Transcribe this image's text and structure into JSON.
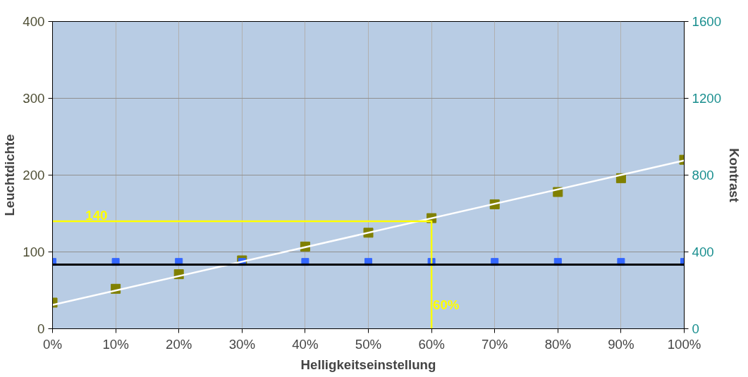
{
  "chart_data": {
    "type": "scatter",
    "xlabel": "Helligkeitseinstellung",
    "ylabel": "Leuchtdichte",
    "y2label": "Kontrast",
    "x": [
      0,
      10,
      20,
      30,
      40,
      50,
      60,
      70,
      80,
      90,
      100
    ],
    "series": [
      {
        "color": "#808000",
        "marker": "square",
        "values": [
          34,
          52,
          71,
          89,
          107,
          125,
          144,
          162,
          178,
          196,
          220
        ]
      },
      {
        "color": "#3366ff",
        "marker": "square",
        "axis": "y2",
        "values": [
          348,
          348,
          348,
          348,
          348,
          348,
          348,
          348,
          348,
          348,
          348
        ]
      },
      {
        "type": "line",
        "color": "#ffffff",
        "x": [
          0,
          100
        ],
        "values": [
          31,
          219
        ]
      },
      {
        "type": "line",
        "color": "#ffff00",
        "x": [
          0,
          60,
          60
        ],
        "values": [
          140,
          140,
          0
        ]
      }
    ],
    "ref_lines": [
      {
        "axis": "y2",
        "value": 334,
        "color": "#000000"
      }
    ],
    "annotations": [
      {
        "text": "140",
        "x": 5,
        "y": 140
      },
      {
        "text": "60%",
        "x": 60,
        "y": 20
      }
    ],
    "xlim": [
      0,
      100
    ],
    "ylim": [
      0,
      400
    ],
    "y2lim": [
      0,
      1600
    ],
    "xticks": [
      {
        "value": 0,
        "label": "0%"
      },
      {
        "value": 10,
        "label": "10%"
      },
      {
        "value": 20,
        "label": "20%"
      },
      {
        "value": 30,
        "label": "30%"
      },
      {
        "value": 40,
        "label": "40%"
      },
      {
        "value": 50,
        "label": "50%"
      },
      {
        "value": 60,
        "label": "60%"
      },
      {
        "value": 70,
        "label": "70%"
      },
      {
        "value": 80,
        "label": "80%"
      },
      {
        "value": 90,
        "label": "90%"
      },
      {
        "value": 100,
        "label": "100%"
      }
    ],
    "yticks": [
      0,
      100,
      200,
      300,
      400
    ],
    "y2ticks": [
      0,
      400,
      800,
      1200,
      1600
    ],
    "grid": true
  }
}
